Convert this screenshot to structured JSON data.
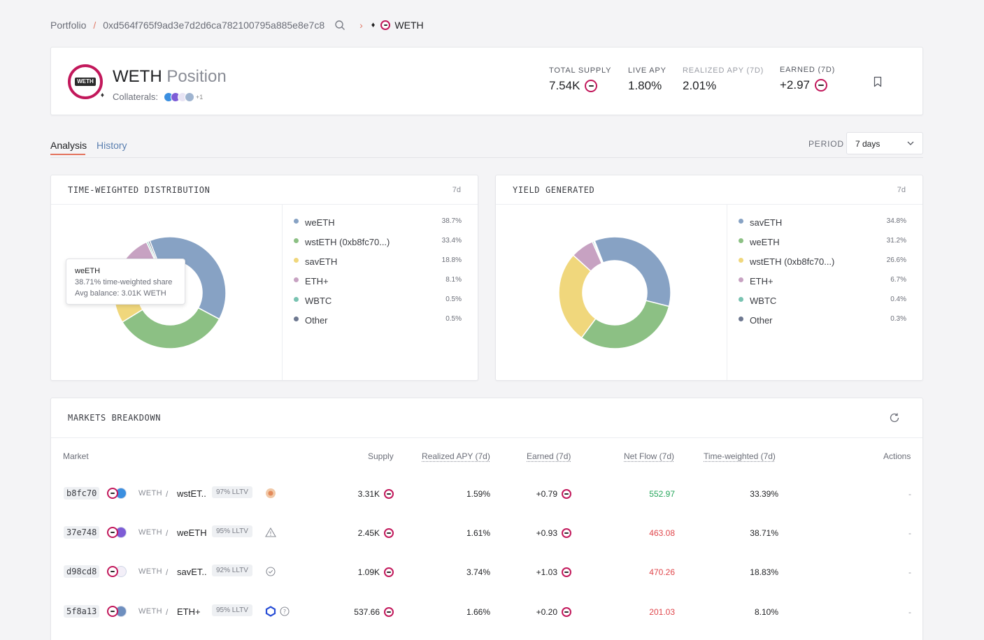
{
  "breadcrumb": {
    "portfolio": "Portfolio",
    "separator": "/",
    "address": "0xd564f765f9ad3e7d2d6ca782100795a885e8e7c8",
    "chevron": "›",
    "chain_icon": "ethereum-icon",
    "token": "WETH"
  },
  "header": {
    "asset": "WETH",
    "subtitle": "Position",
    "collaterals_label": "Collaterals:",
    "collaterals_more": "+1",
    "stats": [
      {
        "label": "TOTAL SUPPLY",
        "value": "7.54K",
        "has_token_icon": true
      },
      {
        "label": "LIVE APY",
        "value": "1.80%"
      },
      {
        "label": "REALIZED APY (7D)",
        "value": "2.01%"
      },
      {
        "label": "EARNED (7D)",
        "value": "+2.97",
        "has_token_icon": true
      }
    ]
  },
  "tabs": {
    "analysis": "Analysis",
    "history": "History"
  },
  "period": {
    "label": "PERIOD",
    "value": "7 days"
  },
  "distribution": {
    "title": "TIME-WEIGHTED DISTRIBUTION",
    "period": "7d",
    "tooltip": {
      "name": "weETH",
      "line1": "38.71% time-weighted share",
      "line2": "Avg balance: 3.01K WETH"
    }
  },
  "yield": {
    "title": "YIELD GENERATED",
    "period": "7d"
  },
  "chart_data": [
    {
      "type": "pie",
      "title": "TIME-WEIGHTED DISTRIBUTION",
      "categories": [
        "weETH",
        "wstETH (0xb8fc70...)",
        "savETH",
        "ETH+",
        "WBTC",
        "Other"
      ],
      "values": [
        38.7,
        33.4,
        18.8,
        8.1,
        0.5,
        0.5
      ],
      "labels": [
        "38.7%",
        "33.4%",
        "18.8%",
        "8.1%",
        "0.5%",
        "0.5%"
      ],
      "colors": [
        "#87a2c4",
        "#8cc084",
        "#f0d77c",
        "#c7a2c2",
        "#79c3b1",
        "#6e7890"
      ]
    },
    {
      "type": "pie",
      "title": "YIELD GENERATED",
      "categories": [
        "savETH",
        "weETH",
        "wstETH (0xb8fc70...)",
        "ETH+",
        "WBTC",
        "Other"
      ],
      "values": [
        34.8,
        31.2,
        26.6,
        6.7,
        0.4,
        0.3
      ],
      "labels": [
        "34.8%",
        "31.2%",
        "26.6%",
        "6.7%",
        "0.4%",
        "0.3%"
      ],
      "colors": [
        "#87a2c4",
        "#8cc084",
        "#f0d77c",
        "#c7a2c2",
        "#79c3b1",
        "#6e7890"
      ]
    }
  ],
  "markets": {
    "title": "MARKETS BREAKDOWN",
    "columns": {
      "market": "Market",
      "supply": "Supply",
      "apy": "Realized APY (7d)",
      "earned": "Earned (7d)",
      "netflow": "Net Flow (7d)",
      "tw": "Time-weighted (7d)",
      "actions": "Actions"
    },
    "rows": [
      {
        "id": "b8fc70",
        "loan": "WETH",
        "sep": "/",
        "collateral": "wstET..",
        "lltv": "97% LLTV",
        "supply": "3.31K",
        "apy": "1.59%",
        "earned": "+0.79",
        "netflow": "552.97",
        "netflow_dir": "up",
        "tw": "33.39%",
        "action": "-",
        "flag_icon": "oracle-icon"
      },
      {
        "id": "37e748",
        "loan": "WETH",
        "sep": "/",
        "collateral": "weETH",
        "lltv": "95% LLTV",
        "supply": "2.45K",
        "apy": "1.61%",
        "earned": "+0.93",
        "netflow": "463.08",
        "netflow_dir": "down",
        "tw": "38.71%",
        "action": "-",
        "flag_icon": "warning-icon"
      },
      {
        "id": "d98cd8",
        "loan": "WETH",
        "sep": "/",
        "collateral": "savET..",
        "lltv": "92% LLTV",
        "supply": "1.09K",
        "apy": "3.74%",
        "earned": "+1.03",
        "netflow": "470.26",
        "netflow_dir": "down",
        "tw": "18.83%",
        "action": "-",
        "flag_icon": "check-circle-icon"
      },
      {
        "id": "5f8a13",
        "loan": "WETH",
        "sep": "/",
        "collateral": "ETH+",
        "lltv": "95% LLTV",
        "supply": "537.66",
        "apy": "1.66%",
        "earned": "+0.20",
        "netflow": "201.03",
        "netflow_dir": "down",
        "tw": "8.10%",
        "action": "-",
        "flag_icon": "shield-icon"
      }
    ]
  },
  "colors": {
    "accent": "#e4735d",
    "link": "#5a7fb0",
    "positive": "#26a65b",
    "negative": "#e0474c",
    "weth_brand": "#c2185b"
  }
}
